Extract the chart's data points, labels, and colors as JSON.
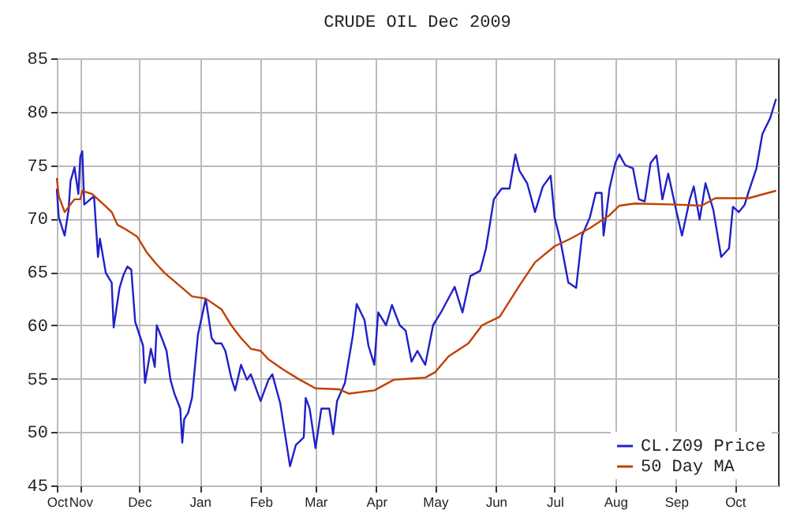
{
  "chart_data": {
    "type": "line",
    "title": "CRUDE OIL Dec 2009",
    "xlim": [
      "2008-10-20",
      "2009-10-23"
    ],
    "xticks": [
      {
        "value": "2008-10-20",
        "label": "Oct"
      },
      {
        "value": "2008-11-01",
        "label": "Nov"
      },
      {
        "value": "2008-12-01",
        "label": "Dec"
      },
      {
        "value": "2009-01-01",
        "label": "Jan"
      },
      {
        "value": "2009-02-01",
        "label": "Feb"
      },
      {
        "value": "2009-03-01",
        "label": "Mar"
      },
      {
        "value": "2009-04-01",
        "label": "Apr"
      },
      {
        "value": "2009-05-01",
        "label": "May"
      },
      {
        "value": "2009-06-01",
        "label": "Jun"
      },
      {
        "value": "2009-07-01",
        "label": "Jul"
      },
      {
        "value": "2009-08-01",
        "label": "Aug"
      },
      {
        "value": "2009-09-01",
        "label": "Sep"
      },
      {
        "value": "2009-10-01",
        "label": "Oct"
      }
    ],
    "ylim": [
      45,
      85
    ],
    "yticks": [
      45,
      50,
      55,
      60,
      65,
      70,
      75,
      80,
      85
    ],
    "grid": true,
    "legend": "bottom right",
    "series": [
      {
        "name": "CL.Z09 Price",
        "color": "#2020c8",
        "x": [
          "2008-10-20",
          "2008-10-21",
          "2008-10-24",
          "2008-10-26",
          "2008-10-27",
          "2008-10-29",
          "2008-10-31",
          "2008-11-01",
          "2008-11-02",
          "2008-11-03",
          "2008-11-08",
          "2008-11-10",
          "2008-11-11",
          "2008-11-14",
          "2008-11-17",
          "2008-11-18",
          "2008-11-21",
          "2008-11-23",
          "2008-11-25",
          "2008-11-27",
          "2008-11-29",
          "2008-12-03",
          "2008-12-04",
          "2008-12-07",
          "2008-12-09",
          "2008-12-10",
          "2008-12-13",
          "2008-12-15",
          "2008-12-17",
          "2008-12-19",
          "2008-12-22",
          "2008-12-23",
          "2008-12-24",
          "2008-12-26",
          "2008-12-28",
          "2008-12-31",
          "2009-01-04",
          "2009-01-07",
          "2009-01-09",
          "2009-01-12",
          "2009-01-14",
          "2009-01-17",
          "2009-01-19",
          "2009-01-22",
          "2009-01-25",
          "2009-01-27",
          "2009-02-01",
          "2009-02-05",
          "2009-02-07",
          "2009-02-11",
          "2009-02-16",
          "2009-02-19",
          "2009-02-23",
          "2009-02-24",
          "2009-02-26",
          "2009-03-01",
          "2009-03-04",
          "2009-03-08",
          "2009-03-10",
          "2009-03-12",
          "2009-03-16",
          "2009-03-20",
          "2009-03-22",
          "2009-03-26",
          "2009-03-28",
          "2009-03-31",
          "2009-04-02",
          "2009-04-06",
          "2009-04-09",
          "2009-04-13",
          "2009-04-16",
          "2009-04-19",
          "2009-04-22",
          "2009-04-26",
          "2009-04-30",
          "2009-05-04",
          "2009-05-11",
          "2009-05-15",
          "2009-05-19",
          "2009-05-24",
          "2009-05-27",
          "2009-05-31",
          "2009-06-04",
          "2009-06-08",
          "2009-06-11",
          "2009-06-13",
          "2009-06-17",
          "2009-06-21",
          "2009-06-25",
          "2009-06-29",
          "2009-07-01",
          "2009-07-04",
          "2009-07-08",
          "2009-07-12",
          "2009-07-15",
          "2009-07-19",
          "2009-07-22",
          "2009-07-25",
          "2009-07-26",
          "2009-07-29",
          "2009-08-01",
          "2009-08-03",
          "2009-08-06",
          "2009-08-10",
          "2009-08-13",
          "2009-08-16",
          "2009-08-19",
          "2009-08-22",
          "2009-08-25",
          "2009-08-28",
          "2009-09-01",
          "2009-09-04",
          "2009-09-08",
          "2009-09-10",
          "2009-09-13",
          "2009-09-16",
          "2009-09-20",
          "2009-09-24",
          "2009-09-28",
          "2009-09-30",
          "2009-10-03",
          "2009-10-06",
          "2009-10-08",
          "2009-10-12",
          "2009-10-15",
          "2009-10-19",
          "2009-10-22"
        ],
        "values": [
          72.8,
          70.1,
          68.4,
          70.8,
          73.5,
          74.8,
          72.3,
          75.8,
          76.3,
          71.3,
          72.1,
          66.4,
          68.1,
          64.9,
          64.0,
          59.8,
          63.5,
          64.7,
          65.5,
          65.2,
          60.3,
          58.1,
          54.6,
          57.8,
          56.1,
          60.0,
          58.6,
          57.6,
          54.9,
          53.6,
          52.2,
          49.0,
          51.2,
          51.8,
          53.2,
          59.1,
          62.5,
          58.8,
          58.3,
          58.3,
          57.6,
          55.1,
          53.9,
          56.3,
          54.9,
          55.4,
          52.9,
          54.9,
          55.4,
          52.7,
          46.8,
          48.8,
          49.5,
          53.2,
          52.2,
          48.5,
          52.2,
          52.2,
          49.8,
          52.9,
          54.6,
          59.0,
          62.0,
          60.5,
          58.1,
          56.3,
          61.2,
          60.0,
          61.9,
          60.0,
          59.5,
          56.6,
          57.6,
          56.3,
          60.0,
          61.2,
          63.6,
          61.2,
          64.6,
          65.1,
          67.2,
          71.8,
          72.8,
          72.8,
          76.0,
          74.5,
          73.3,
          70.6,
          73.0,
          74.0,
          70.1,
          67.9,
          64.0,
          63.5,
          68.4,
          70.1,
          72.4,
          72.4,
          68.4,
          72.8,
          75.2,
          76.0,
          75.0,
          74.7,
          71.8,
          71.6,
          75.2,
          75.9,
          71.8,
          74.2,
          70.8,
          68.4,
          71.8,
          73.0,
          69.9,
          73.3,
          70.8,
          66.4,
          67.2,
          71.1,
          70.6,
          71.3,
          72.5,
          74.7,
          77.9,
          79.4,
          81.2
        ]
      },
      {
        "name": "50 Day MA",
        "color": "#c04000",
        "x": [
          "2008-10-20",
          "2008-10-21",
          "2008-10-24",
          "2008-10-29",
          "2008-11-01",
          "2008-11-02",
          "2008-11-07",
          "2008-11-13",
          "2008-11-17",
          "2008-11-20",
          "2008-11-24",
          "2008-11-30",
          "2008-12-05",
          "2008-12-09",
          "2008-12-14",
          "2008-12-23",
          "2008-12-28",
          "2009-01-04",
          "2009-01-12",
          "2009-01-17",
          "2009-01-22",
          "2009-01-27",
          "2009-02-01",
          "2009-02-05",
          "2009-02-13",
          "2009-02-21",
          "2009-03-01",
          "2009-03-13",
          "2009-03-18",
          "2009-03-31",
          "2009-04-10",
          "2009-04-26",
          "2009-05-01",
          "2009-05-08",
          "2009-05-18",
          "2009-05-25",
          "2009-06-03",
          "2009-06-13",
          "2009-06-21",
          "2009-07-01",
          "2009-07-09",
          "2009-07-19",
          "2009-07-29",
          "2009-08-03",
          "2009-08-11",
          "2009-09-01",
          "2009-09-14",
          "2009-09-21",
          "2009-10-08",
          "2009-10-22"
        ],
        "values": [
          73.8,
          72.1,
          70.6,
          71.8,
          71.8,
          72.6,
          72.3,
          71.3,
          70.6,
          69.4,
          69.0,
          68.3,
          66.8,
          65.9,
          64.9,
          63.5,
          62.7,
          62.5,
          61.5,
          60.0,
          58.8,
          57.8,
          57.6,
          56.8,
          55.8,
          54.9,
          54.1,
          54.0,
          53.6,
          53.9,
          54.9,
          55.1,
          55.6,
          57.1,
          58.3,
          60.0,
          60.8,
          63.7,
          65.9,
          67.4,
          68.1,
          69.1,
          70.3,
          71.2,
          71.4,
          71.3,
          71.2,
          71.9,
          71.9,
          72.6
        ]
      }
    ]
  }
}
